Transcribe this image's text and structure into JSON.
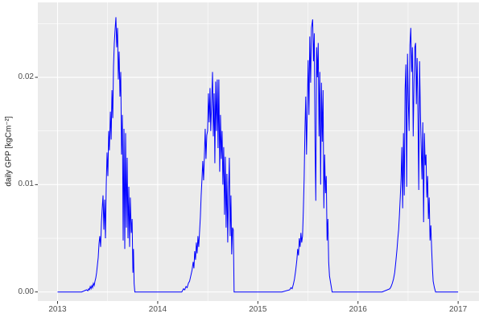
{
  "chart_data": {
    "type": "line",
    "title": "",
    "xlabel": "",
    "ylabel": "daily GPP [kgCm⁻²]",
    "legend": false,
    "grid": true,
    "panel_bg": "#EBEBEB",
    "grid_color": "#FFFFFF",
    "line_color": "#0000FF",
    "tick_label_color": "#4D4D4D",
    "tick_mark_color": "#333333",
    "xlim": [
      2012.803,
      2017.208
    ],
    "ylim": [
      -0.00085,
      0.02698
    ],
    "x_ticks": [
      2013,
      2014,
      2015,
      2016,
      2017
    ],
    "x_tick_labels": [
      "2013",
      "2014",
      "2015",
      "2016",
      "2017"
    ],
    "x_minor_ticks": [
      2013.5,
      2014.5,
      2015.5,
      2016.5
    ],
    "y_ticks": [
      0.0,
      0.01,
      0.02
    ],
    "y_tick_labels": [
      "0.00",
      "0.01",
      "0.02"
    ],
    "y_minor_ticks": [
      0.005,
      0.015,
      0.025
    ],
    "series": [
      {
        "name": "daily GPP",
        "points": [
          [
            2013.0,
            0
          ],
          [
            2013.24,
            0
          ],
          [
            2013.29,
            0.0002
          ],
          [
            2013.302,
            0.0001
          ],
          [
            2013.31,
            0.0003
          ],
          [
            2013.318,
            0.0002
          ],
          [
            2013.326,
            0.0005
          ],
          [
            2013.334,
            0.0003
          ],
          [
            2013.342,
            0.0006
          ],
          [
            2013.35,
            0.0004
          ],
          [
            2013.358,
            0.0008
          ],
          [
            2013.366,
            0.0006
          ],
          [
            2013.374,
            0.001
          ],
          [
            2013.382,
            0.0013
          ],
          [
            2013.39,
            0.0018
          ],
          [
            2013.398,
            0.0025
          ],
          [
            2013.406,
            0.0032
          ],
          [
            2013.414,
            0.0045
          ],
          [
            2013.422,
            0.0052
          ],
          [
            2013.43,
            0.0042
          ],
          [
            2013.438,
            0.0065
          ],
          [
            2013.446,
            0.0078
          ],
          [
            2013.454,
            0.009
          ],
          [
            2013.462,
            0.0058
          ],
          [
            2013.47,
            0.0086
          ],
          [
            2013.478,
            0.005
          ],
          [
            2013.486,
            0.01
          ],
          [
            2013.494,
            0.013
          ],
          [
            2013.502,
            0.0108
          ],
          [
            2013.51,
            0.015
          ],
          [
            2013.518,
            0.0132
          ],
          [
            2013.527,
            0.0168
          ],
          [
            2013.535,
            0.0142
          ],
          [
            2013.543,
            0.0188
          ],
          [
            2013.551,
            0.0162
          ],
          [
            2013.559,
            0.021
          ],
          [
            2013.567,
            0.0232
          ],
          [
            2013.575,
            0.0245
          ],
          [
            2013.583,
            0.0256
          ],
          [
            2013.591,
            0.0228
          ],
          [
            2013.599,
            0.0246
          ],
          [
            2013.607,
            0.0198
          ],
          [
            2013.615,
            0.0224
          ],
          [
            2013.623,
            0.0182
          ],
          [
            2013.631,
            0.0205
          ],
          [
            2013.639,
            0.0128
          ],
          [
            2013.647,
            0.0165
          ],
          [
            2013.655,
            0.0048
          ],
          [
            2013.663,
            0.0152
          ],
          [
            2013.671,
            0.004
          ],
          [
            2013.679,
            0.0148
          ],
          [
            2013.687,
            0.006
          ],
          [
            2013.695,
            0.0125
          ],
          [
            2013.703,
            0.005
          ],
          [
            2013.711,
            0.0098
          ],
          [
            2013.719,
            0.0042
          ],
          [
            2013.727,
            0.0088
          ],
          [
            2013.736,
            0.0055
          ],
          [
            2013.744,
            0.0068
          ],
          [
            2013.752,
            0.0018
          ],
          [
            2013.758,
            0.004
          ],
          [
            2013.764,
            0.0008
          ],
          [
            2013.772,
            0
          ],
          [
            2014.24,
            0
          ],
          [
            2014.258,
            0.0003
          ],
          [
            2014.27,
            0.0002
          ],
          [
            2014.282,
            0.0005
          ],
          [
            2014.294,
            0.0004
          ],
          [
            2014.306,
            0.0008
          ],
          [
            2014.318,
            0.001
          ],
          [
            2014.33,
            0.0015
          ],
          [
            2014.342,
            0.002
          ],
          [
            2014.354,
            0.0028
          ],
          [
            2014.362,
            0.0022
          ],
          [
            2014.37,
            0.0038
          ],
          [
            2014.378,
            0.003
          ],
          [
            2014.386,
            0.0046
          ],
          [
            2014.394,
            0.0036
          ],
          [
            2014.402,
            0.0052
          ],
          [
            2014.41,
            0.0042
          ],
          [
            2014.418,
            0.0056
          ],
          [
            2014.426,
            0.007
          ],
          [
            2014.434,
            0.009
          ],
          [
            2014.442,
            0.0105
          ],
          [
            2014.45,
            0.0122
          ],
          [
            2014.458,
            0.0104
          ],
          [
            2014.466,
            0.0126
          ],
          [
            2014.474,
            0.0152
          ],
          [
            2014.482,
            0.0124
          ],
          [
            2014.49,
            0.0146
          ],
          [
            2014.498,
            0.015
          ],
          [
            2014.506,
            0.0185
          ],
          [
            2014.514,
            0.0158
          ],
          [
            2014.522,
            0.019
          ],
          [
            2014.53,
            0.015
          ],
          [
            2014.539,
            0.0178
          ],
          [
            2014.547,
            0.0205
          ],
          [
            2014.555,
            0.0145
          ],
          [
            2014.563,
            0.0185
          ],
          [
            2014.571,
            0.012
          ],
          [
            2014.579,
            0.0196
          ],
          [
            2014.587,
            0.015
          ],
          [
            2014.595,
            0.0198
          ],
          [
            2014.603,
            0.0134
          ],
          [
            2014.611,
            0.0198
          ],
          [
            2014.619,
            0.0112
          ],
          [
            2014.627,
            0.0165
          ],
          [
            2014.635,
            0.0124
          ],
          [
            2014.643,
            0.015
          ],
          [
            2014.651,
            0.01
          ],
          [
            2014.659,
            0.0135
          ],
          [
            2014.667,
            0.0072
          ],
          [
            2014.675,
            0.0126
          ],
          [
            2014.683,
            0.006
          ],
          [
            2014.691,
            0.011
          ],
          [
            2014.699,
            0.0046
          ],
          [
            2014.707,
            0.0092
          ],
          [
            2014.715,
            0.0125
          ],
          [
            2014.723,
            0.0052
          ],
          [
            2014.731,
            0.009
          ],
          [
            2014.739,
            0.0035
          ],
          [
            2014.747,
            0.006
          ],
          [
            2014.755,
            0.0058
          ],
          [
            2014.759,
            0.003
          ],
          [
            2014.763,
            0
          ],
          [
            2015.24,
            0
          ],
          [
            2015.318,
            0.0002
          ],
          [
            2015.33,
            0.0004
          ],
          [
            2015.342,
            0.0003
          ],
          [
            2015.354,
            0.0007
          ],
          [
            2015.366,
            0.0012
          ],
          [
            2015.378,
            0.002
          ],
          [
            2015.39,
            0.003
          ],
          [
            2015.398,
            0.004
          ],
          [
            2015.406,
            0.0034
          ],
          [
            2015.414,
            0.005
          ],
          [
            2015.422,
            0.0042
          ],
          [
            2015.43,
            0.0055
          ],
          [
            2015.438,
            0.0046
          ],
          [
            2015.446,
            0.0052
          ],
          [
            2015.454,
            0.0075
          ],
          [
            2015.462,
            0.0105
          ],
          [
            2015.47,
            0.015
          ],
          [
            2015.478,
            0.0182
          ],
          [
            2015.486,
            0.0128
          ],
          [
            2015.494,
            0.0172
          ],
          [
            2015.502,
            0.0216
          ],
          [
            2015.51,
            0.0165
          ],
          [
            2015.518,
            0.0238
          ],
          [
            2015.527,
            0.0195
          ],
          [
            2015.535,
            0.0246
          ],
          [
            2015.547,
            0.0254
          ],
          [
            2015.555,
            0.0215
          ],
          [
            2015.563,
            0.0241
          ],
          [
            2015.571,
            0.0135
          ],
          [
            2015.579,
            0.0085
          ],
          [
            2015.587,
            0.0228
          ],
          [
            2015.595,
            0.02
          ],
          [
            2015.603,
            0.0232
          ],
          [
            2015.611,
            0.0145
          ],
          [
            2015.619,
            0.0205
          ],
          [
            2015.627,
            0.01
          ],
          [
            2015.635,
            0.0195
          ],
          [
            2015.643,
            0.014
          ],
          [
            2015.651,
            0.0188
          ],
          [
            2015.659,
            0.0078
          ],
          [
            2015.667,
            0.0128
          ],
          [
            2015.675,
            0.0092
          ],
          [
            2015.683,
            0.0108
          ],
          [
            2015.691,
            0.0048
          ],
          [
            2015.699,
            0.0068
          ],
          [
            2015.707,
            0.0028
          ],
          [
            2015.715,
            0.0015
          ],
          [
            2015.727,
            0.0008
          ],
          [
            2015.742,
            0
          ],
          [
            2016.24,
            0
          ],
          [
            2016.318,
            0.0003
          ],
          [
            2016.33,
            0.0005
          ],
          [
            2016.342,
            0.0008
          ],
          [
            2016.354,
            0.0012
          ],
          [
            2016.366,
            0.0018
          ],
          [
            2016.378,
            0.0028
          ],
          [
            2016.39,
            0.004
          ],
          [
            2016.398,
            0.005
          ],
          [
            2016.406,
            0.0058
          ],
          [
            2016.414,
            0.0072
          ],
          [
            2016.422,
            0.0088
          ],
          [
            2016.43,
            0.0105
          ],
          [
            2016.438,
            0.0135
          ],
          [
            2016.446,
            0.0078
          ],
          [
            2016.454,
            0.0148
          ],
          [
            2016.462,
            0.009
          ],
          [
            2016.47,
            0.0188
          ],
          [
            2016.478,
            0.0212
          ],
          [
            2016.486,
            0.0098
          ],
          [
            2016.494,
            0.0222
          ],
          [
            2016.502,
            0.0178
          ],
          [
            2016.51,
            0.015
          ],
          [
            2016.518,
            0.023
          ],
          [
            2016.527,
            0.0246
          ],
          [
            2016.535,
            0.0205
          ],
          [
            2016.543,
            0.0228
          ],
          [
            2016.551,
            0.0145
          ],
          [
            2016.559,
            0.0195
          ],
          [
            2016.567,
            0.0228
          ],
          [
            2016.575,
            0.0232
          ],
          [
            2016.583,
            0.0175
          ],
          [
            2016.591,
            0.0218
          ],
          [
            2016.599,
            0.0165
          ],
          [
            2016.607,
            0.0095
          ],
          [
            2016.615,
            0.0215
          ],
          [
            2016.623,
            0.0168
          ],
          [
            2016.631,
            0.0135
          ],
          [
            2016.639,
            0.0105
          ],
          [
            2016.647,
            0.0158
          ],
          [
            2016.655,
            0.0065
          ],
          [
            2016.663,
            0.0148
          ],
          [
            2016.671,
            0.0118
          ],
          [
            2016.679,
            0.0128
          ],
          [
            2016.687,
            0.0088
          ],
          [
            2016.695,
            0.0108
          ],
          [
            2016.703,
            0.0068
          ],
          [
            2016.711,
            0.0088
          ],
          [
            2016.719,
            0.0048
          ],
          [
            2016.727,
            0.0062
          ],
          [
            2016.735,
            0.004
          ],
          [
            2016.743,
            0.0022
          ],
          [
            2016.751,
            0.001
          ],
          [
            2016.763,
            0.0004
          ],
          [
            2016.775,
            0
          ],
          [
            2017.0,
            0
          ]
        ]
      }
    ]
  }
}
